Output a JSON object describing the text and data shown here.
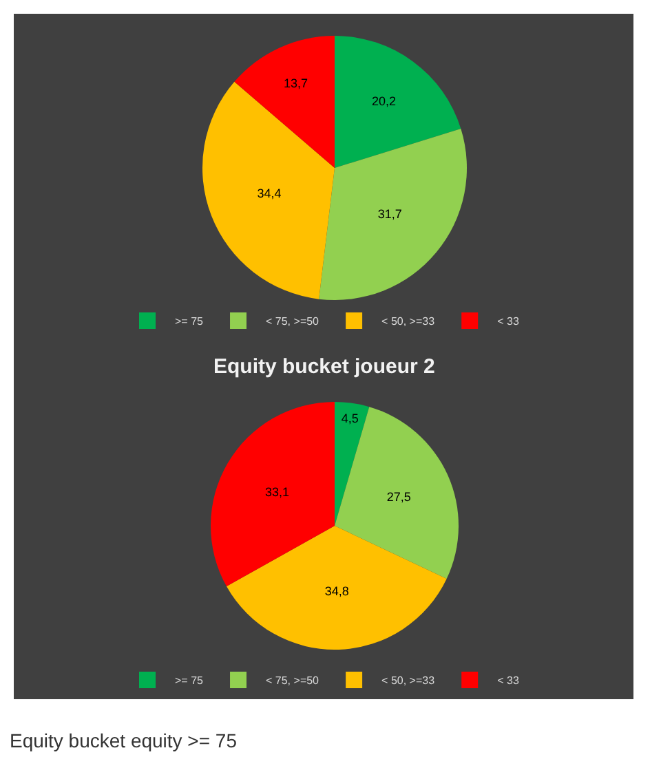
{
  "chart_data": [
    {
      "type": "pie",
      "categories": [
        ">= 75",
        "< 75, >=50",
        "< 50, >=33",
        "< 33"
      ],
      "values": [
        20.2,
        31.7,
        34.4,
        13.7
      ],
      "value_labels": [
        "20,2",
        "31,7",
        "34,4",
        "13,7"
      ],
      "colors": [
        "#00b050",
        "#92d050",
        "#ffc000",
        "#ff0000"
      ],
      "legend": "bottom"
    },
    {
      "type": "pie",
      "title": "Equity bucket joueur 2",
      "categories": [
        ">= 75",
        "< 75, >=50",
        "< 50, >=33",
        "< 33"
      ],
      "values": [
        4.5,
        27.5,
        34.8,
        33.1
      ],
      "value_labels": [
        "4,5",
        "27,5",
        "34,8",
        "33,1"
      ],
      "colors": [
        "#00b050",
        "#92d050",
        "#ffc000",
        "#ff0000"
      ],
      "legend": "bottom",
      "annotations": [
        "Equity bucket equity >= 75"
      ]
    }
  ]
}
